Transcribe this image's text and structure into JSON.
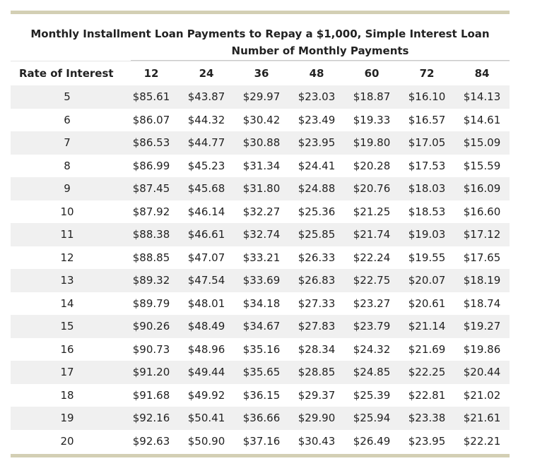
{
  "title": "Monthly Installment Loan Payments to Repay a $1,000, Simple Interest Loan",
  "subheading": "Number of Monthly Payments",
  "columns": [
    "Rate of Interest",
    "12",
    "24",
    "36",
    "48",
    "60",
    "72",
    "84"
  ],
  "rows": [
    [
      "5",
      "$85.61",
      "$43.87",
      "$29.97",
      "$23.03",
      "$18.87",
      "$16.10",
      "$14.13"
    ],
    [
      "6",
      "$86.07",
      "$44.32",
      "$30.42",
      "$23.49",
      "$19.33",
      "$16.57",
      "$14.61"
    ],
    [
      "7",
      "$86.53",
      "$44.77",
      "$30.88",
      "$23.95",
      "$19.80",
      "$17.05",
      "$15.09"
    ],
    [
      "8",
      "$86.99",
      "$45.23",
      "$31.34",
      "$24.41",
      "$20.28",
      "$17.53",
      "$15.59"
    ],
    [
      "9",
      "$87.45",
      "$45.68",
      "$31.80",
      "$24.88",
      "$20.76",
      "$18.03",
      "$16.09"
    ],
    [
      "10",
      "$87.92",
      "$46.14",
      "$32.27",
      "$25.36",
      "$21.25",
      "$18.53",
      "$16.60"
    ],
    [
      "11",
      "$88.38",
      "$46.61",
      "$32.74",
      "$25.85",
      "$21.74",
      "$19.03",
      "$17.12"
    ],
    [
      "12",
      "$88.85",
      "$47.07",
      "$33.21",
      "$26.33",
      "$22.24",
      "$19.55",
      "$17.65"
    ],
    [
      "13",
      "$89.32",
      "$47.54",
      "$33.69",
      "$26.83",
      "$22.75",
      "$20.07",
      "$18.19"
    ],
    [
      "14",
      "$89.79",
      "$48.01",
      "$34.18",
      "$27.33",
      "$23.27",
      "$20.61",
      "$18.74"
    ],
    [
      "15",
      "$90.26",
      "$48.49",
      "$34.67",
      "$27.83",
      "$23.79",
      "$21.14",
      "$19.27"
    ],
    [
      "16",
      "$90.73",
      "$48.96",
      "$35.16",
      "$28.34",
      "$24.32",
      "$21.69",
      "$19.86"
    ],
    [
      "17",
      "$91.20",
      "$49.44",
      "$35.65",
      "$28.85",
      "$24.85",
      "$22.25",
      "$20.44"
    ],
    [
      "18",
      "$91.68",
      "$49.92",
      "$36.15",
      "$29.37",
      "$25.39",
      "$22.81",
      "$21.02"
    ],
    [
      "19",
      "$92.16",
      "$50.41",
      "$36.66",
      "$29.90",
      "$25.94",
      "$23.38",
      "$21.61"
    ],
    [
      "20",
      "$92.63",
      "$50.90",
      "$37.16",
      "$30.43",
      "$26.49",
      "$23.95",
      "$22.21"
    ]
  ],
  "colors": {
    "accent_bar": "#d3cfb4",
    "row_stripe": "#f0f0f0"
  }
}
